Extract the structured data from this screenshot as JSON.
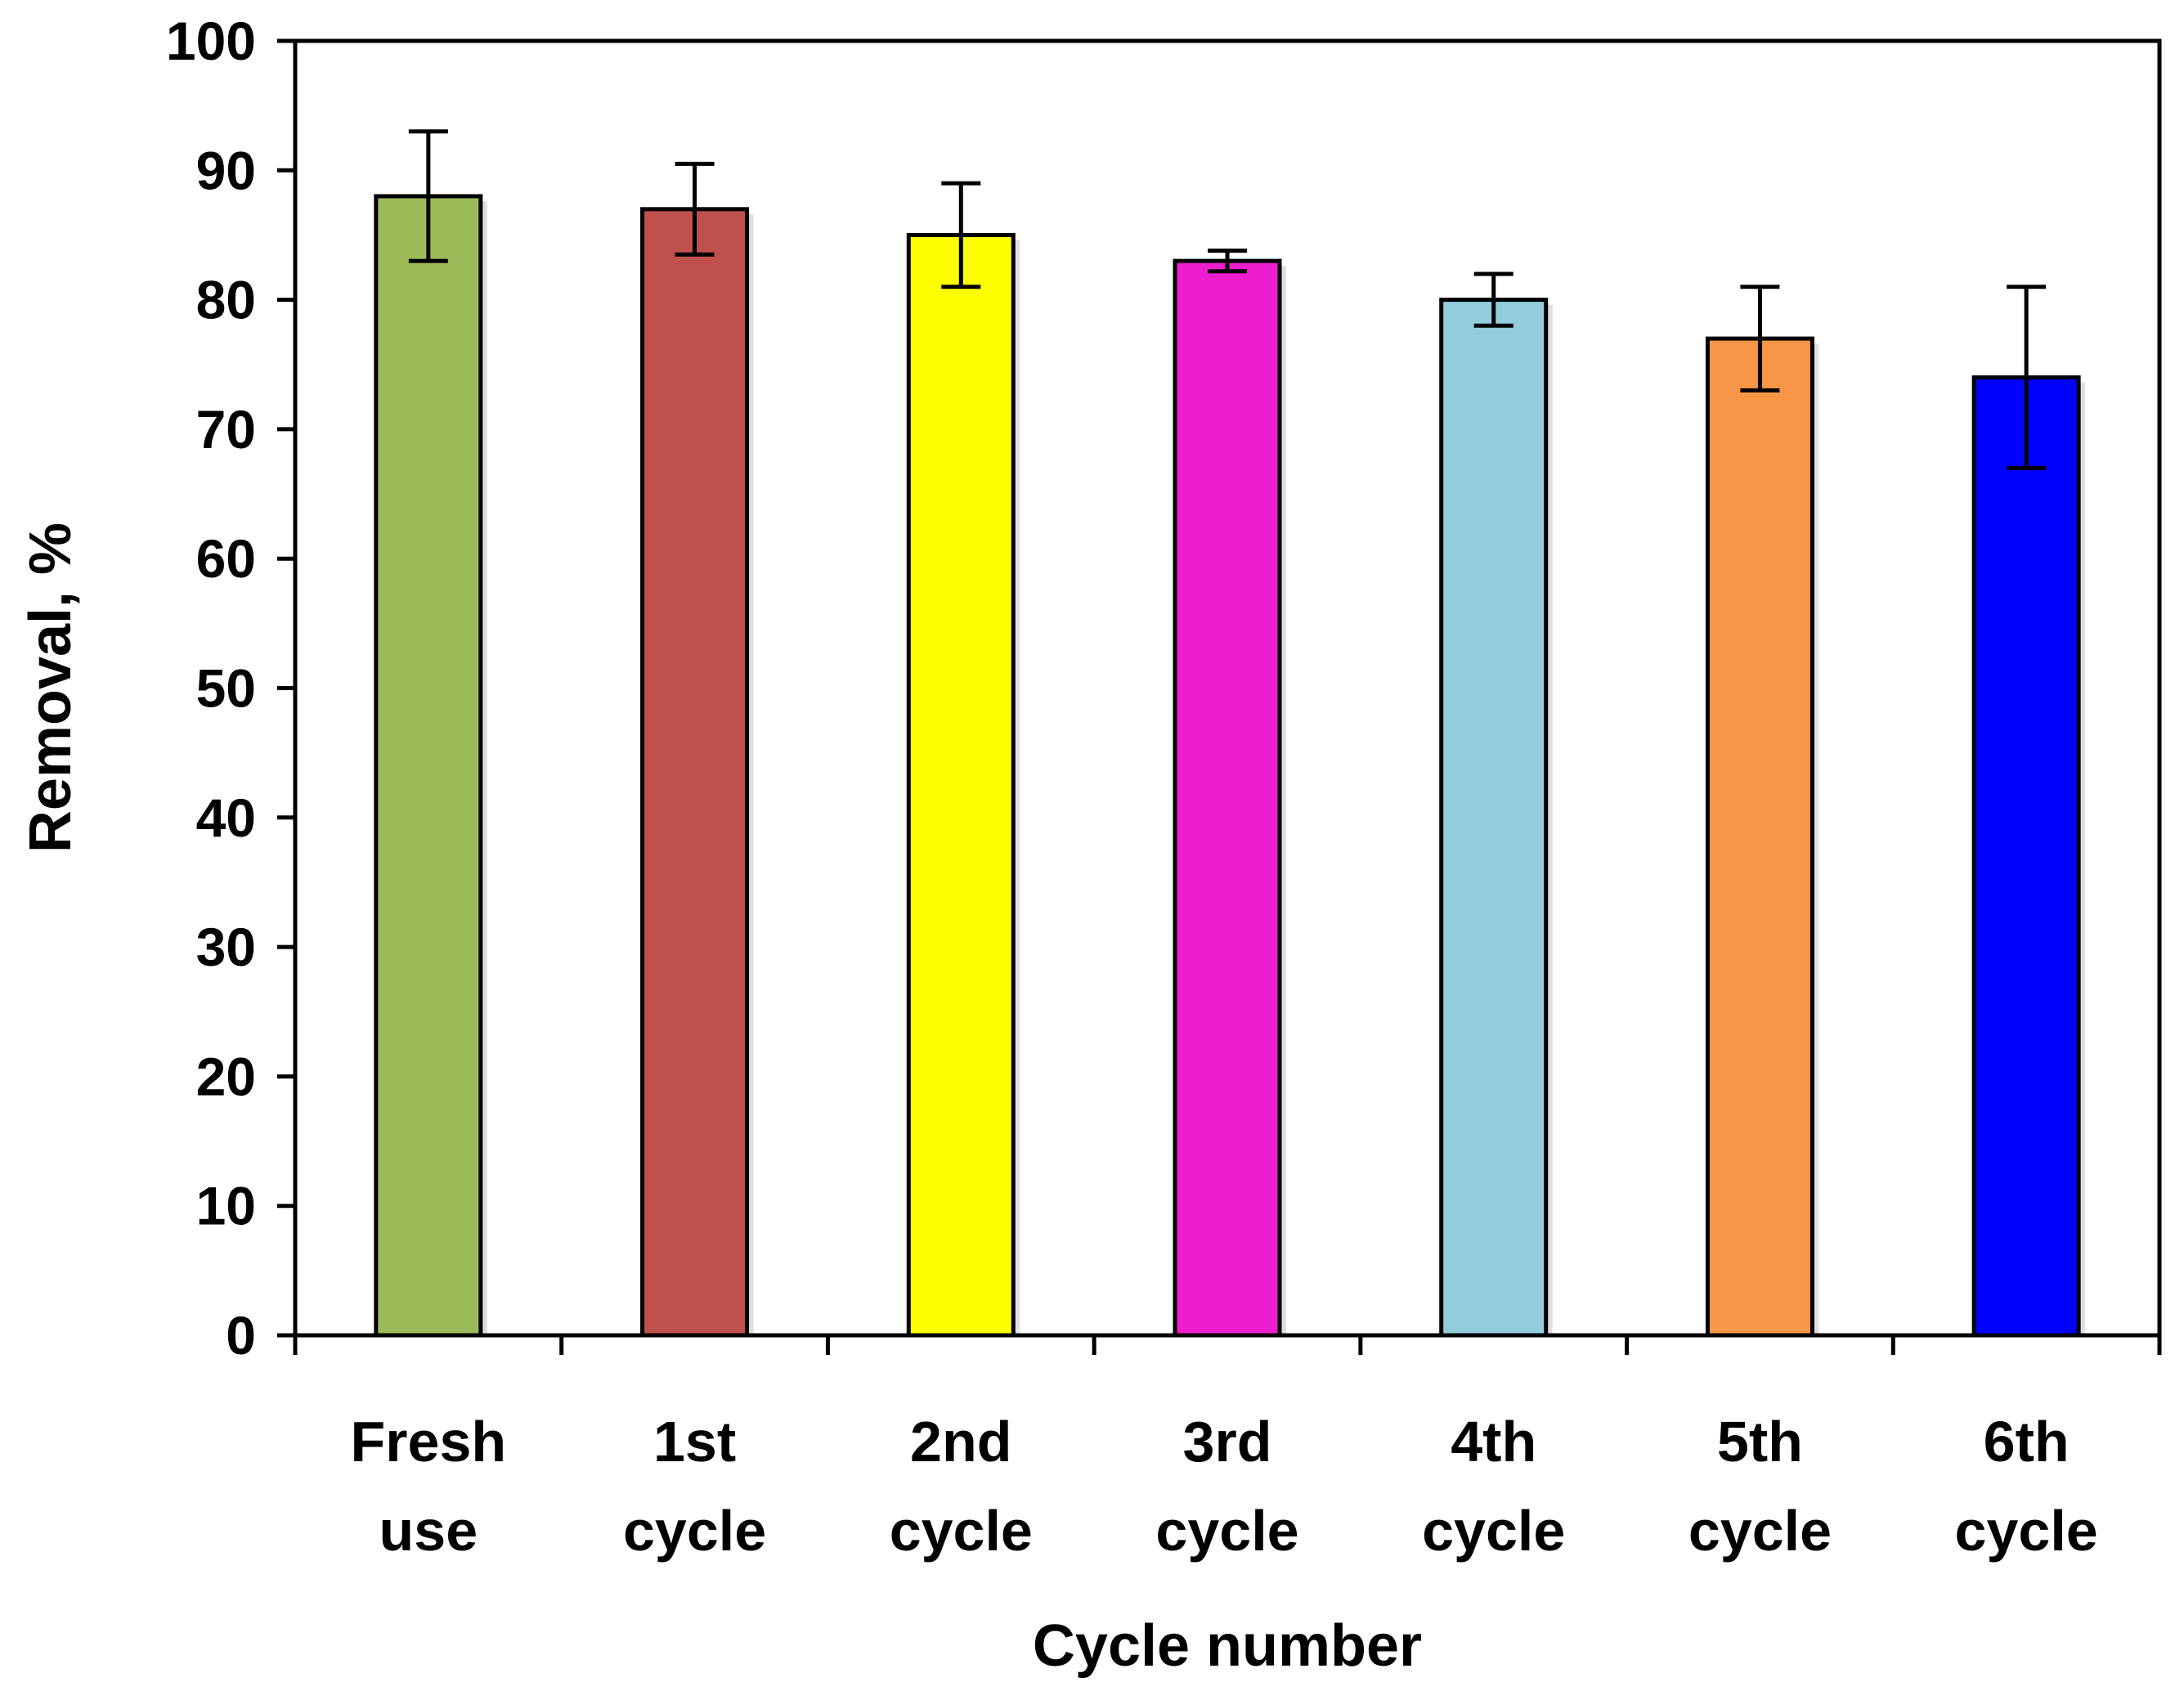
{
  "chart_data": {
    "type": "bar",
    "title": "",
    "xlabel": "Cycle number",
    "ylabel": "Removal, %",
    "ylim": [
      0,
      100
    ],
    "yticks": [
      0,
      10,
      20,
      30,
      40,
      50,
      60,
      70,
      80,
      90,
      100
    ],
    "ytick_labels": [
      "0",
      "10",
      "20",
      "30",
      "40",
      "50",
      "60",
      "70",
      "80",
      "90",
      "100"
    ],
    "grid": false,
    "legend": "none",
    "categories": [
      [
        "Fresh",
        "use"
      ],
      [
        "1st",
        "cycle"
      ],
      [
        "2nd",
        "cycle"
      ],
      [
        "3rd",
        "cycle"
      ],
      [
        "4th",
        "cycle"
      ],
      [
        "5th",
        "cycle"
      ],
      [
        "6th",
        "cycle"
      ]
    ],
    "values": [
      88,
      87,
      85,
      83,
      80,
      77,
      74
    ],
    "errors": [
      5,
      3.5,
      4,
      0.8,
      2,
      4,
      7
    ],
    "colors": [
      "#9BBB59",
      "#C0504D",
      "#FFFF00",
      "#EE1ECE",
      "#92CDDC",
      "#F79646",
      "#0000FF"
    ]
  }
}
